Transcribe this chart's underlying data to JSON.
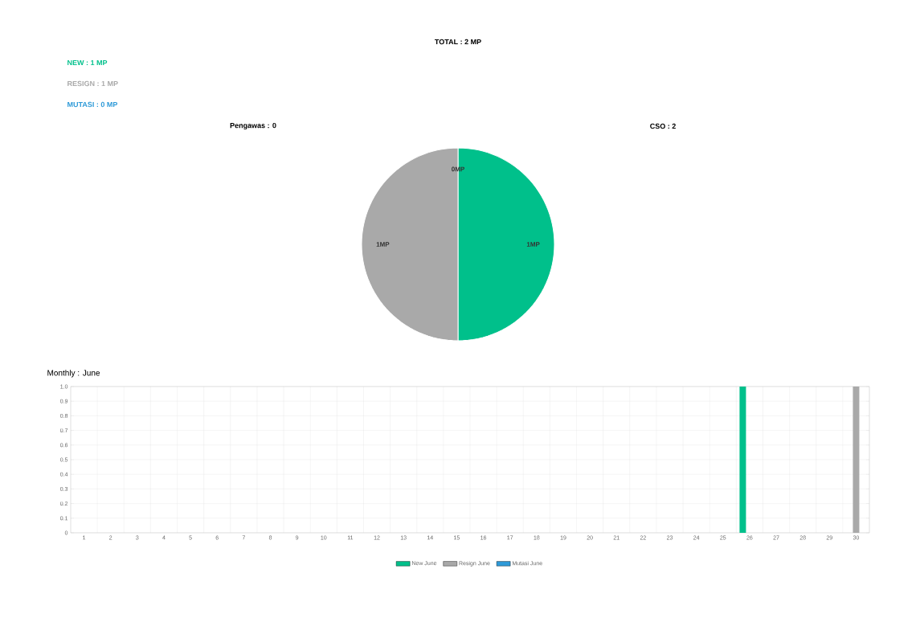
{
  "chart_data": [
    {
      "type": "pie",
      "title": "TOTAL : 2 MP",
      "categories": [
        null,
        null,
        null
      ],
      "values": [
        1,
        1,
        0
      ],
      "colors": [
        "#00c08b",
        "#a9a9a9",
        "#2e9ad8"
      ],
      "value_labels": [
        "1MP",
        "1MP",
        "0MP"
      ],
      "annotations": [
        "NEW : 1 MP",
        "RESIGN : 1 MP",
        "MUTASI : 0 MP",
        "Pengawas : 0",
        "CSO : 2"
      ]
    },
    {
      "type": "bar",
      "title": "Monthly : June",
      "categories": [
        "1",
        "2",
        "3",
        "4",
        "5",
        "6",
        "7",
        "8",
        "9",
        "10",
        "11",
        "12",
        "13",
        "14",
        "15",
        "16",
        "17",
        "18",
        "19",
        "20",
        "21",
        "22",
        "23",
        "24",
        "25",
        "26",
        "27",
        "28",
        "29",
        "30"
      ],
      "series": [
        {
          "name": "New June",
          "color": "#00c08b",
          "values": [
            0,
            0,
            0,
            0,
            0,
            0,
            0,
            0,
            0,
            0,
            0,
            0,
            0,
            0,
            0,
            0,
            0,
            0,
            0,
            0,
            0,
            0,
            0,
            0,
            0,
            1,
            0,
            0,
            0,
            0
          ]
        },
        {
          "name": "Resign June",
          "color": "#a9a9a9",
          "values": [
            0,
            0,
            0,
            0,
            0,
            0,
            0,
            0,
            0,
            0,
            0,
            0,
            0,
            0,
            0,
            0,
            0,
            0,
            0,
            0,
            0,
            0,
            0,
            0,
            0,
            0,
            0,
            0,
            0,
            1
          ]
        },
        {
          "name": "Mutasi June",
          "color": "#2e9ad8",
          "values": [
            0,
            0,
            0,
            0,
            0,
            0,
            0,
            0,
            0,
            0,
            0,
            0,
            0,
            0,
            0,
            0,
            0,
            0,
            0,
            0,
            0,
            0,
            0,
            0,
            0,
            0,
            0,
            0,
            0,
            0
          ]
        }
      ],
      "ylim": [
        0,
        1
      ],
      "yticks": [
        0,
        0.1,
        0.2,
        0.3,
        0.4,
        0.5,
        0.6,
        0.7,
        0.8,
        0.9,
        {
          "value": 1,
          "label": "1.0"
        }
      ],
      "grid": true,
      "legend": "bottom"
    }
  ]
}
